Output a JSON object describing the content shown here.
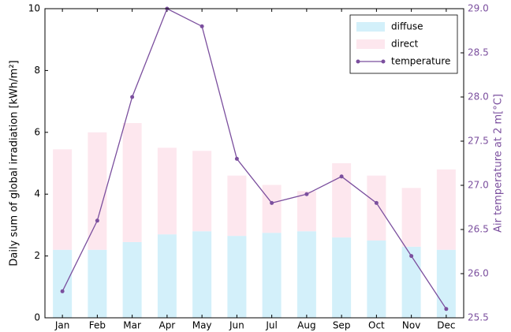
{
  "chart_data": {
    "type": "bar",
    "categories": [
      "Jan",
      "Feb",
      "Mar",
      "Apr",
      "May",
      "Jun",
      "Jul",
      "Aug",
      "Sep",
      "Oct",
      "Nov",
      "Dec"
    ],
    "series": [
      {
        "name": "diffuse",
        "type": "bar",
        "color": "#d3f0fa",
        "values": [
          2.2,
          2.2,
          2.45,
          2.7,
          2.8,
          2.65,
          2.75,
          2.8,
          2.6,
          2.5,
          2.3,
          2.2
        ]
      },
      {
        "name": "direct",
        "type": "bar",
        "color": "#fde7ee",
        "values": [
          3.25,
          3.8,
          3.85,
          2.8,
          2.6,
          1.95,
          1.55,
          1.3,
          2.4,
          2.1,
          1.9,
          2.6
        ]
      },
      {
        "name": "temperature",
        "type": "line",
        "axis": "y2",
        "color": "#7b4f9e",
        "values": [
          25.8,
          26.6,
          28.0,
          29.0,
          28.8,
          27.3,
          26.8,
          26.9,
          27.1,
          26.8,
          26.2,
          25.6
        ]
      }
    ],
    "ylabel": "Daily sum of global irradiation [kWh/m²]",
    "y2label": "Air temperature at 2 m[°C]",
    "ylim": [
      0,
      10
    ],
    "yticks": [
      0,
      2,
      4,
      6,
      8,
      10
    ],
    "y2lim": [
      25.5,
      29.0
    ],
    "y2ticks": [
      25.5,
      {
        "value": 26,
        "label": "26.0"
      },
      26.5,
      {
        "value": 27,
        "label": "27.0"
      },
      27.5,
      {
        "value": 28,
        "label": "28.0"
      },
      28.5,
      {
        "value": 29,
        "label": "29.0"
      }
    ],
    "legend": "upper right",
    "grid": false
  }
}
